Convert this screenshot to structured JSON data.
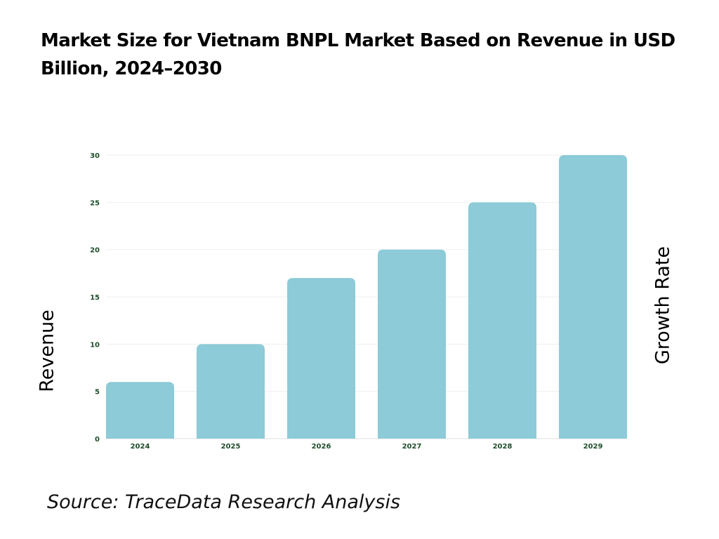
{
  "chart_data": {
    "type": "bar",
    "title": "Market Size for Vietnam BNPL Market Based on Revenue in USD Billion, 2024–2030",
    "categories": [
      "2024",
      "2025",
      "2026",
      "2027",
      "2028",
      "2029"
    ],
    "values": [
      6,
      10,
      17,
      20,
      25,
      30
    ],
    "ylabel": "Revenue",
    "y2label": "Growth Rate",
    "ylim": [
      0,
      30
    ],
    "yticks": [
      0,
      5,
      10,
      15,
      20,
      25,
      30
    ],
    "grid": true,
    "bar_color": "#8ccbd7",
    "tick_color": "#1f4d2a"
  },
  "source": "Source: TraceData Research Analysis"
}
